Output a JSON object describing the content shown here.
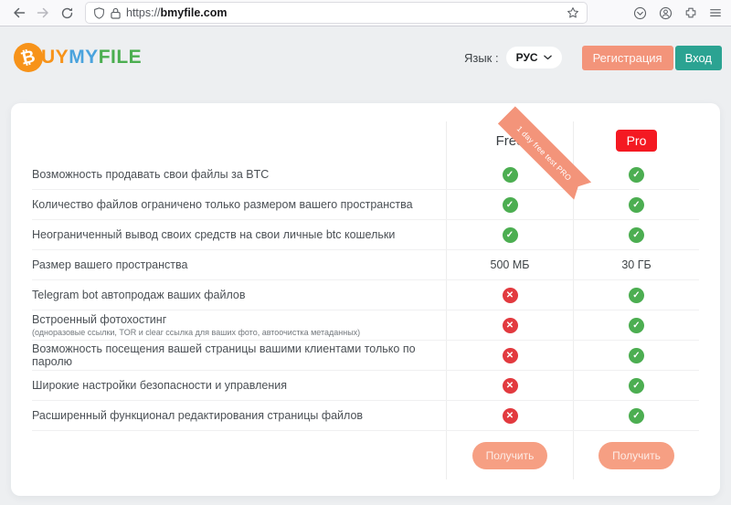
{
  "browser": {
    "url_protocol": "https://",
    "url_domain": "bmyfile.com"
  },
  "header": {
    "logo_coin": "₿",
    "logo_part1": "UY",
    "logo_part2": "MY",
    "logo_part3": "FILE",
    "language_label": "Язык :",
    "language_value": "РУС",
    "register_label": "Регистрация",
    "login_label": "Вход"
  },
  "plans": {
    "free_label": "Free",
    "pro_label": "Pro",
    "ribbon_label": "1 day free test PRO",
    "cta_label": "Получить"
  },
  "table": {
    "rows": [
      {
        "label": "Возможность продавать свои файлы за BTC",
        "free": "check",
        "pro": "check"
      },
      {
        "label": "Количество файлов ограничено только размером вашего пространства",
        "free": "check",
        "pro": "check"
      },
      {
        "label": "Неограниченный вывод своих средств на свои личные btc кошельки",
        "free": "check",
        "pro": "check"
      },
      {
        "label": "Размер вашего пространства",
        "free": "500 МБ",
        "pro": "30 ГБ"
      },
      {
        "label": "Telegram bot автопродаж ваших файлов",
        "free": "cross",
        "pro": "check"
      },
      {
        "label": "Встроенный фотохостинг",
        "sublabel": "(одноразовые ссылки, TOR и clear ссылка для ваших фото, автоочистка метаданных)",
        "free": "cross",
        "pro": "check"
      },
      {
        "label": "Возможность посещения вашей страницы вашими клиентами только по паролю",
        "free": "cross",
        "pro": "check"
      },
      {
        "label": "Широкие настройки безопасности и управления",
        "free": "cross",
        "pro": "check"
      },
      {
        "label": "Расширенный функционал редактирования страницы файлов",
        "free": "cross",
        "pro": "check"
      }
    ]
  },
  "colors": {
    "brand_orange": "#F7931A",
    "brand_blue": "#4AA3DD",
    "brand_green": "#4BAE50",
    "salmon": "#F3947A",
    "salmon_cta": "#F69F83",
    "teal": "#2BA392",
    "pro_red": "#F41922",
    "check_green": "#4CAE51",
    "cross_red": "#E23A3F"
  }
}
